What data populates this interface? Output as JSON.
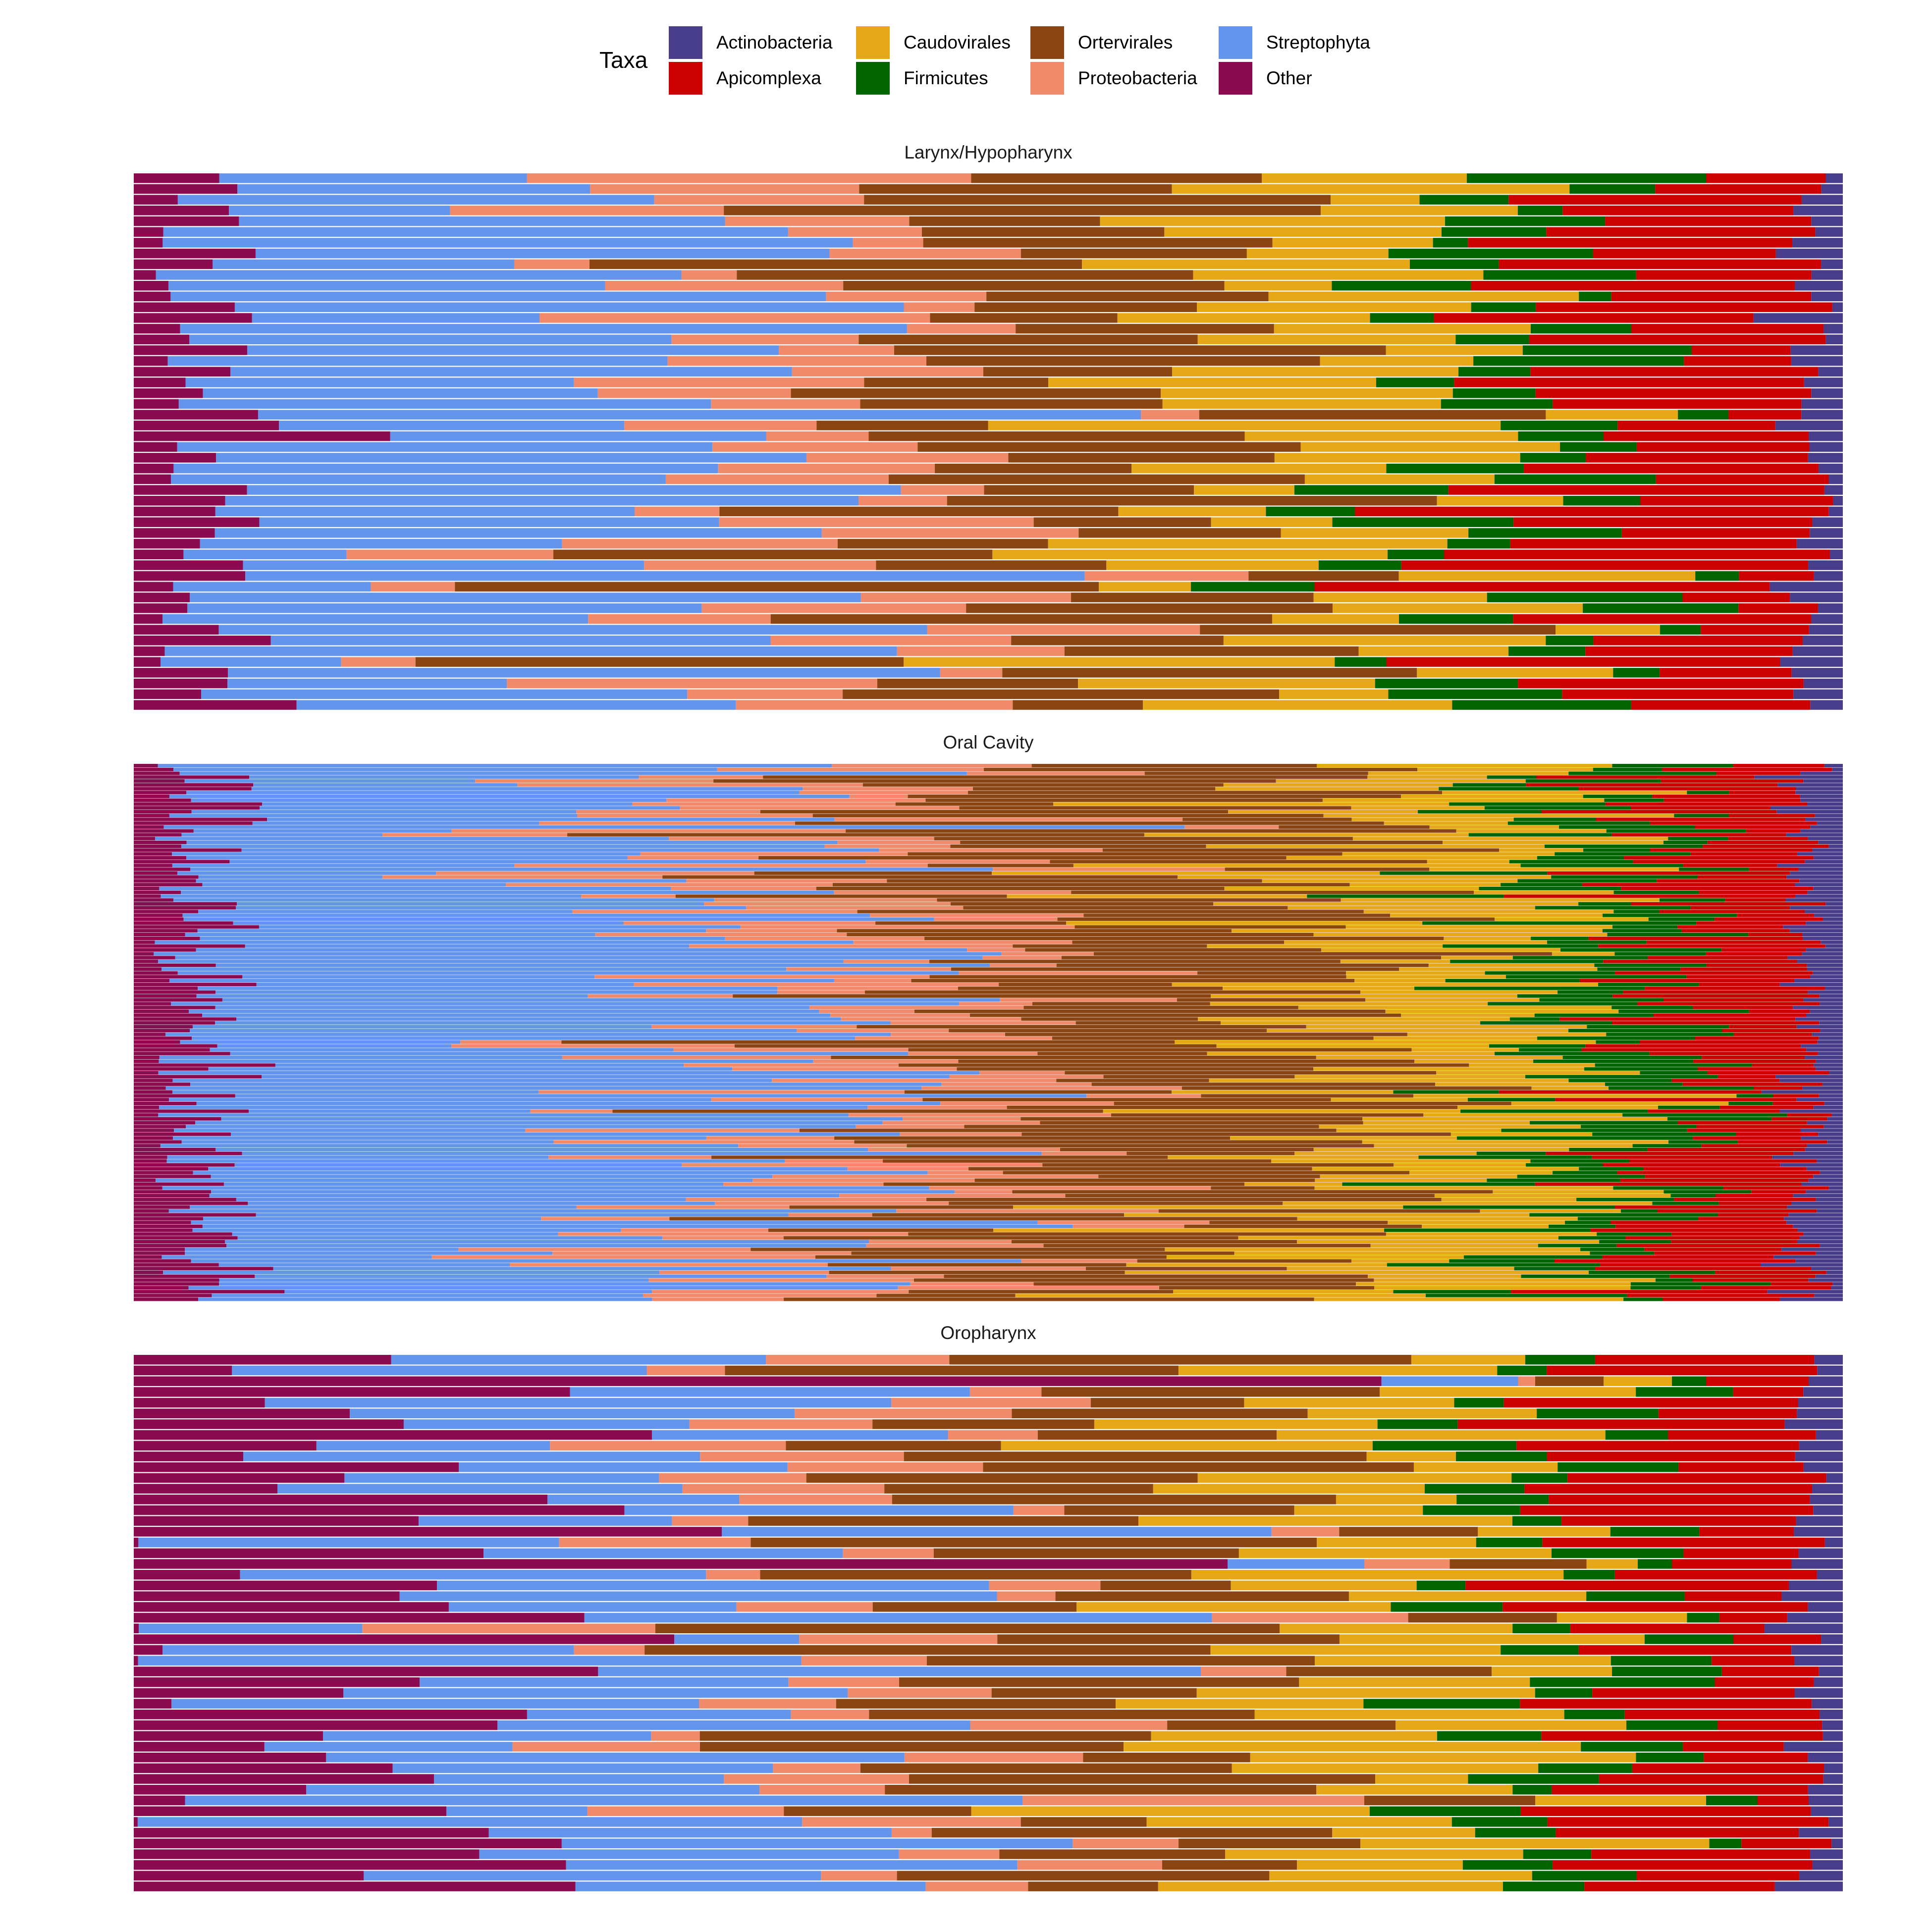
{
  "chart_data": {
    "type": "bar",
    "orientation": "horizontal",
    "stacked": true,
    "normalized": true,
    "legend": {
      "title": "Taxa",
      "position": "top",
      "entries": [
        "Actinobacteria",
        "Apicomplexa",
        "Caudovirales",
        "Firmicutes",
        "Ortervirales",
        "Proteobacteria",
        "Streptophyta",
        "Other"
      ]
    },
    "stack_order": [
      "Other",
      "Streptophyta",
      "Proteobacteria",
      "Ortervirales",
      "Caudovirales",
      "Firmicutes",
      "Apicomplexa",
      "Actinobacteria"
    ],
    "colors": {
      "Actinobacteria": "#483D8B",
      "Apicomplexa": "#CC0000",
      "Caudovirales": "#E6A817",
      "Firmicutes": "#006400",
      "Ortervirales": "#8B4513",
      "Proteobacteria": "#F08A6A",
      "Streptophyta": "#6495ED",
      "Other": "#8B0A50"
    },
    "axes": {
      "x_ticks": false,
      "y_ticks": false,
      "grid": false
    },
    "facets": [
      {
        "title": "Larynx/Hypopharynx",
        "samples": 50,
        "typical_profile": {
          "Other": 0.04,
          "Streptophyta": 0.3,
          "Proteobacteria": 0.1,
          "Ortervirales": 0.2,
          "Caudovirales": 0.14,
          "Firmicutes": 0.06,
          "Apicomplexa": 0.13,
          "Actinobacteria": 0.02
        },
        "notable_rows": [
          {
            "row": 1,
            "Other": 0.05,
            "Streptophyta": 0.18,
            "Proteobacteria": 0.26,
            "Ortervirales": 0.17,
            "Firmicutes": 0.14,
            "Caudovirales": 0.12,
            "Apicomplexa": 0.07,
            "Actinobacteria": 0.01
          },
          {
            "row": 25,
            "Other": 0.15,
            "Streptophyta": 0.22,
            "Proteobacteria": 0.06,
            "Ortervirales": 0.22,
            "Firmicutes": 0.05,
            "Caudovirales": 0.16,
            "Apicomplexa": 0.12,
            "Actinobacteria": 0.02
          },
          {
            "row": 50,
            "Other": 0.1,
            "Streptophyta": 0.27,
            "Proteobacteria": 0.17,
            "Ortervirales": 0.08,
            "Firmicutes": 0.11,
            "Caudovirales": 0.19,
            "Apicomplexa": 0.11,
            "Actinobacteria": 0.02
          }
        ]
      },
      {
        "title": "Oral Cavity",
        "samples": 140,
        "typical_profile": {
          "Other": 0.04,
          "Streptophyta": 0.33,
          "Proteobacteria": 0.11,
          "Ortervirales": 0.2,
          "Caudovirales": 0.13,
          "Firmicutes": 0.06,
          "Apicomplexa": 0.08,
          "Actinobacteria": 0.02
        }
      },
      {
        "title": "Oropharynx",
        "samples": 50,
        "typical_profile": {
          "Other": 0.15,
          "Streptophyta": 0.22,
          "Proteobacteria": 0.08,
          "Ortervirales": 0.2,
          "Caudovirales": 0.15,
          "Firmicutes": 0.05,
          "Apicomplexa": 0.12,
          "Actinobacteria": 0.02
        },
        "notable_rows": [
          {
            "row": 3,
            "Other": 0.73,
            "Streptophyta": 0.08,
            "Proteobacteria": 0.01,
            "Ortervirales": 0.04,
            "Firmicutes": 0.02,
            "Caudovirales": 0.04,
            "Apicomplexa": 0.06,
            "Actinobacteria": 0.02
          },
          {
            "row": 20,
            "Other": 0.64,
            "Streptophyta": 0.08,
            "Proteobacteria": 0.05,
            "Ortervirales": 0.08,
            "Firmicutes": 0.02,
            "Caudovirales": 0.03,
            "Apicomplexa": 0.07,
            "Actinobacteria": 0.03
          },
          {
            "row": 42,
            "Other": 0.03,
            "Streptophyta": 0.49,
            "Proteobacteria": 0.2,
            "Ortervirales": 0.1,
            "Firmicutes": 0.03,
            "Caudovirales": 0.1,
            "Apicomplexa": 0.03,
            "Actinobacteria": 0.02
          }
        ]
      }
    ]
  }
}
